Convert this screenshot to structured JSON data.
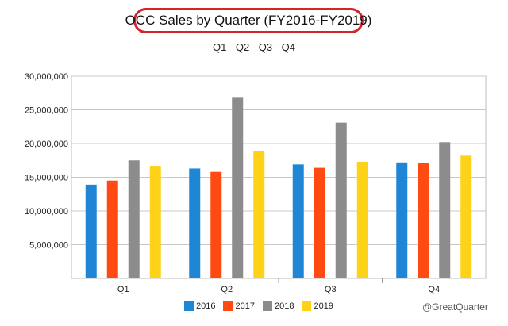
{
  "chart_data": {
    "type": "bar",
    "title": "OCC Sales by Quarter (FY2016-FY2019)",
    "subtitle": "Q1 - Q2 - Q3 - Q4",
    "categories": [
      "Q1",
      "Q2",
      "Q3",
      "Q4"
    ],
    "series": [
      {
        "name": "2016",
        "color": "#1f86d6",
        "values": [
          13900000,
          16300000,
          16900000,
          17200000
        ]
      },
      {
        "name": "2017",
        "color": "#ff4a12",
        "values": [
          14500000,
          15800000,
          16400000,
          17100000
        ]
      },
      {
        "name": "2018",
        "color": "#8c8c8c",
        "values": [
          17500000,
          26900000,
          23100000,
          20200000
        ]
      },
      {
        "name": "2019",
        "color": "#ffd21a",
        "values": [
          16700000,
          18900000,
          17300000,
          18200000
        ]
      }
    ],
    "ylim": [
      0,
      30000000
    ],
    "yticks": [
      "5,000,000",
      "10,000,000",
      "15,000,000",
      "20,000,000",
      "25,000,000",
      "30,000,000"
    ],
    "ytick_values": [
      5000000,
      10000000,
      15000000,
      20000000,
      25000000,
      30000000
    ],
    "grid": true,
    "legend_position": "bottom",
    "credit": "@GreatQuarter"
  }
}
